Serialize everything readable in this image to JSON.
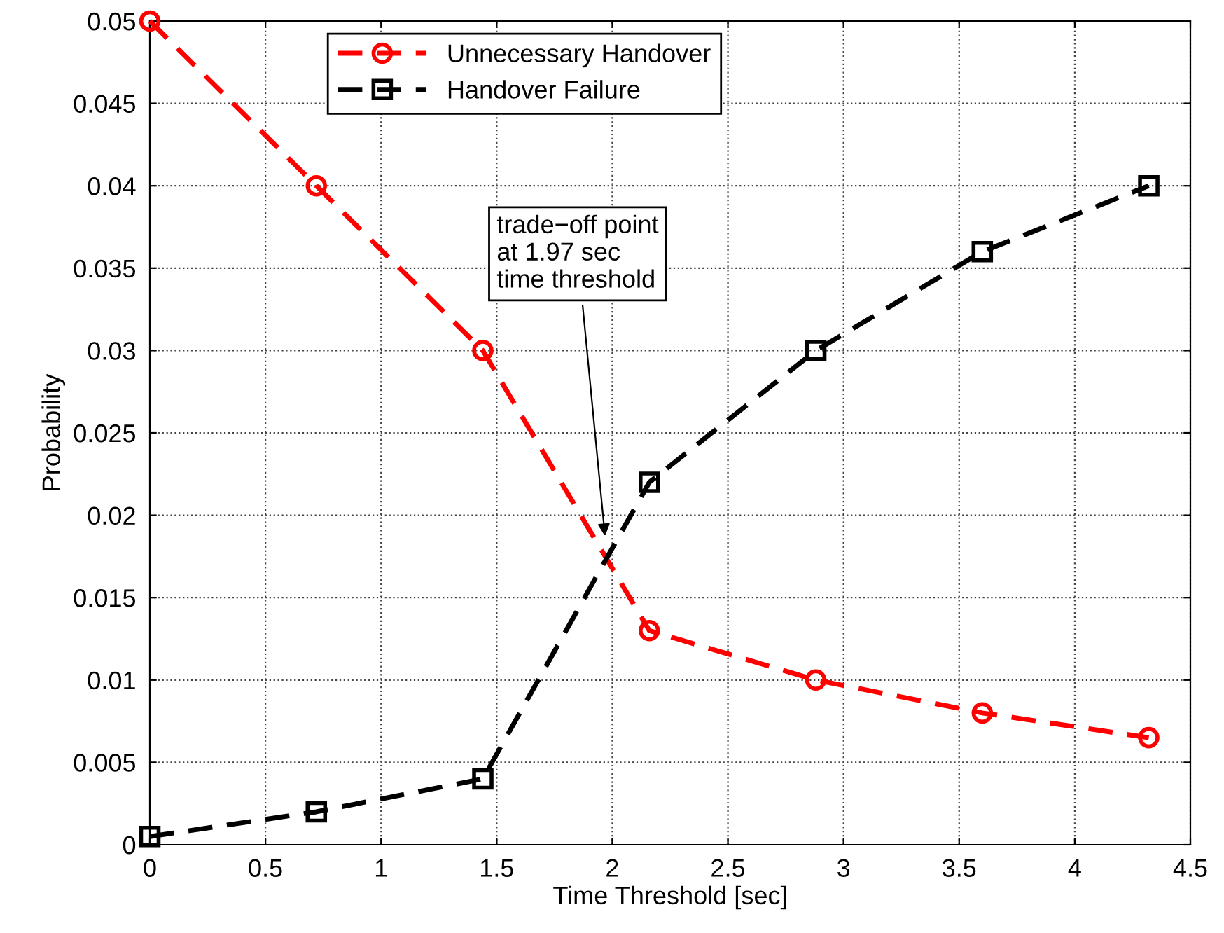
{
  "chart_data": {
    "type": "line",
    "xlabel": "Time Threshold [sec]",
    "ylabel": "Probability",
    "xlim": [
      0,
      4.5
    ],
    "xticks": [
      0,
      0.5,
      1,
      1.5,
      2,
      2.5,
      3,
      3.5,
      4,
      4.5
    ],
    "ylim": [
      0,
      0.05
    ],
    "yticks": [
      0,
      0.005,
      0.01,
      0.015,
      0.02,
      0.025,
      0.03,
      0.035,
      0.04,
      0.045,
      0.05
    ],
    "grid": true,
    "legend": "top",
    "line_style": "dashed",
    "x": [
      0,
      0.72,
      1.44,
      2.16,
      2.88,
      3.6,
      4.32
    ],
    "series": [
      {
        "name": "Unnecessary Handover",
        "color": "#ff0000",
        "marker": "circle",
        "values": [
          0.05,
          0.04,
          0.03,
          0.013,
          0.01,
          0.008,
          0.0065
        ]
      },
      {
        "name": "Handover Failure",
        "color": "#000000",
        "marker": "square",
        "values": [
          0.0005,
          0.002,
          0.004,
          0.022,
          0.03,
          0.036,
          0.04
        ]
      }
    ],
    "annotations": [
      {
        "text": "trade−off point\nat 1.97 sec\ntime threshold",
        "x": 1.97,
        "y": 0.0185
      }
    ]
  }
}
